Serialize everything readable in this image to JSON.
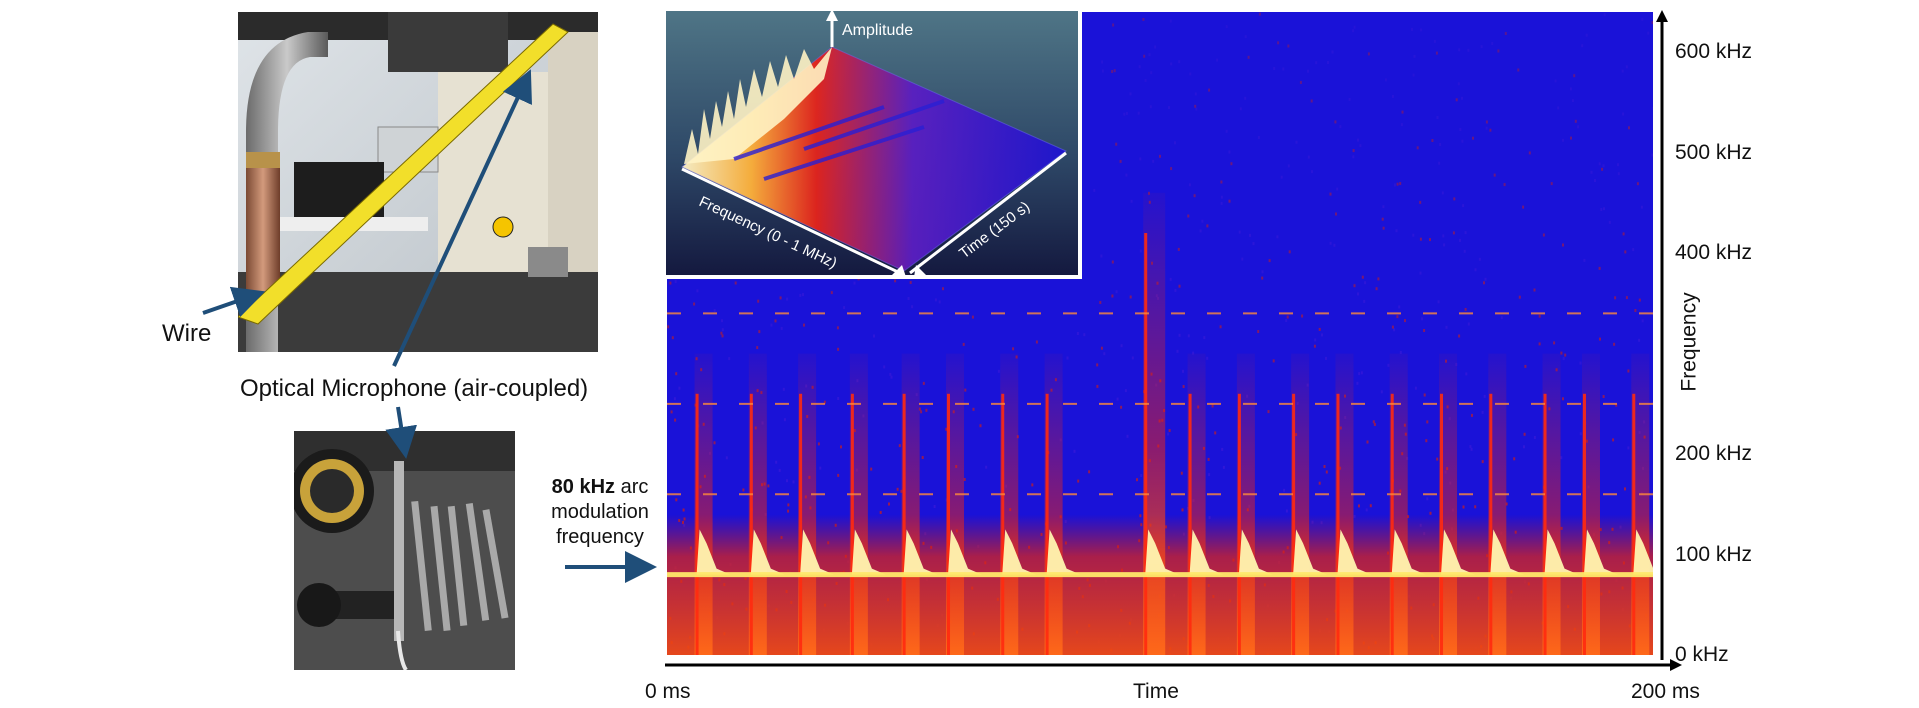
{
  "labels": {
    "wire": "Wire",
    "microphone": "Optical Microphone (air-coupled)",
    "arc_bold": "80 kHz",
    "arc_rest_1": " arc",
    "arc_line_2": "modulation",
    "arc_line_3": "frequency"
  },
  "colors": {
    "arrow": "#1f4e79",
    "spectrogram_background": "#1a12d8",
    "spectrogram_hot": "#e5231b",
    "spectrogram_peak": "#fff6b0"
  },
  "chart_data": {
    "type": "heatmap",
    "title": "",
    "xlabel": "Time",
    "ylabel": "Frequency",
    "x_ticks": [
      {
        "value": 0,
        "label": "0 ms"
      },
      {
        "value": 200,
        "label": "200 ms"
      }
    ],
    "y_ticks": [
      {
        "value": 0,
        "label": "0 kHz"
      },
      {
        "value": 100,
        "label": "100 kHz"
      },
      {
        "value": 200,
        "label": "200 kHz"
      },
      {
        "value": 400,
        "label": "400 kHz"
      },
      {
        "value": 500,
        "label": "500 kHz"
      },
      {
        "value": 600,
        "label": "600 kHz"
      }
    ],
    "xlim": [
      0,
      200
    ],
    "ylim": [
      0,
      640
    ],
    "x_unit": "ms",
    "y_unit": "kHz",
    "arc_modulation_frequency_khz": 80,
    "burst_onsets_ms": [
      6,
      17,
      27,
      37.5,
      48,
      57,
      68,
      77,
      97,
      106,
      116,
      127,
      136,
      147,
      157,
      167,
      178,
      186,
      196
    ],
    "strong_burst_ms": 97,
    "harmonic_lines_khz": [
      80,
      160,
      250,
      340
    ],
    "inset": {
      "type": "surface",
      "axis_labels": {
        "amplitude": "Amplitude",
        "frequency": "Frequency (0 - 1 MHz)",
        "time": "Time (150 s)"
      },
      "frequency_range_mhz": [
        0,
        1
      ],
      "time_range_s": [
        0,
        150
      ]
    }
  }
}
